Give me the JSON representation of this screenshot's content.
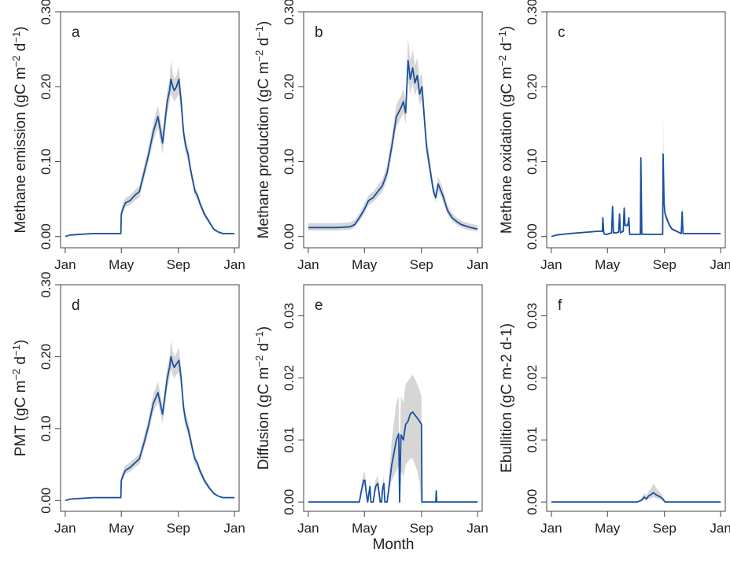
{
  "x_label": "Month",
  "chart_data": [
    {
      "panel": "a",
      "type": "line",
      "ylabel": "Methane emission (gC m",
      "ylabel_sup1": "−2",
      "ylabel_mid": " d",
      "ylabel_sup2": "−1",
      "ylabel_end": ")",
      "ylim": [
        -0.015,
        0.3
      ],
      "yticks": [
        0.0,
        0.1,
        0.2,
        0.3
      ],
      "yticklabels": [
        "0.00",
        "0.10",
        "0.20",
        "0.30"
      ],
      "xlim": [
        -10,
        375
      ],
      "xticks": [
        0,
        121,
        244,
        365
      ],
      "xticklabels": [
        "Jan",
        "May",
        "Sep",
        "Jan"
      ],
      "x": [
        0,
        10,
        60,
        110,
        120,
        121,
        125,
        130,
        140,
        150,
        160,
        170,
        180,
        190,
        200,
        210,
        220,
        225,
        228,
        232,
        235,
        240,
        245,
        250,
        255,
        260,
        265,
        270,
        275,
        280,
        285,
        290,
        300,
        310,
        320,
        330,
        340,
        350,
        360,
        365
      ],
      "y": [
        0.0,
        0.002,
        0.004,
        0.004,
        0.004,
        0.03,
        0.038,
        0.045,
        0.048,
        0.055,
        0.06,
        0.085,
        0.11,
        0.14,
        0.16,
        0.125,
        0.18,
        0.195,
        0.21,
        0.2,
        0.195,
        0.2,
        0.21,
        0.18,
        0.14,
        0.12,
        0.11,
        0.09,
        0.075,
        0.06,
        0.055,
        0.045,
        0.03,
        0.02,
        0.01,
        0.006,
        0.004,
        0.004,
        0.004,
        0.004
      ],
      "lower": [
        0.0,
        0.001,
        0.003,
        0.003,
        0.003,
        0.025,
        0.032,
        0.04,
        0.042,
        0.048,
        0.052,
        0.076,
        0.1,
        0.128,
        0.145,
        0.11,
        0.165,
        0.18,
        0.19,
        0.185,
        0.18,
        0.185,
        0.19,
        0.165,
        0.13,
        0.11,
        0.1,
        0.082,
        0.068,
        0.054,
        0.049,
        0.04,
        0.026,
        0.017,
        0.008,
        0.005,
        0.003,
        0.003,
        0.003,
        0.003
      ],
      "upper": [
        0.0,
        0.003,
        0.005,
        0.005,
        0.005,
        0.036,
        0.045,
        0.052,
        0.055,
        0.062,
        0.068,
        0.094,
        0.12,
        0.152,
        0.175,
        0.14,
        0.195,
        0.21,
        0.235,
        0.218,
        0.21,
        0.215,
        0.228,
        0.195,
        0.152,
        0.13,
        0.12,
        0.098,
        0.082,
        0.066,
        0.061,
        0.05,
        0.034,
        0.023,
        0.012,
        0.007,
        0.005,
        0.005,
        0.005,
        0.005
      ]
    },
    {
      "panel": "b",
      "type": "line",
      "ylabel": "Methane production (gC m",
      "ylabel_sup1": "−2",
      "ylabel_mid": " d",
      "ylabel_sup2": "−1",
      "ylabel_end": ")",
      "ylim": [
        -0.015,
        0.3
      ],
      "yticks": [
        0.0,
        0.1,
        0.2,
        0.3
      ],
      "yticklabels": [
        "0.00",
        "0.10",
        "0.20",
        "0.30"
      ],
      "xlim": [
        -10,
        375
      ],
      "xticks": [
        0,
        121,
        244,
        365
      ],
      "xticklabels": [
        "Jan",
        "May",
        "Sep",
        "Jan"
      ],
      "x": [
        0,
        30,
        60,
        90,
        100,
        110,
        120,
        130,
        140,
        150,
        160,
        170,
        180,
        190,
        200,
        205,
        210,
        215,
        220,
        225,
        230,
        235,
        240,
        245,
        250,
        255,
        260,
        265,
        270,
        275,
        280,
        290,
        300,
        310,
        320,
        330,
        340,
        350,
        365
      ],
      "y": [
        0.012,
        0.012,
        0.012,
        0.013,
        0.016,
        0.025,
        0.035,
        0.048,
        0.052,
        0.06,
        0.068,
        0.085,
        0.12,
        0.16,
        0.172,
        0.18,
        0.165,
        0.235,
        0.21,
        0.225,
        0.205,
        0.215,
        0.19,
        0.2,
        0.16,
        0.12,
        0.1,
        0.08,
        0.06,
        0.052,
        0.07,
        0.055,
        0.035,
        0.025,
        0.02,
        0.016,
        0.014,
        0.012,
        0.01
      ],
      "lower": [
        0.008,
        0.008,
        0.008,
        0.009,
        0.012,
        0.02,
        0.03,
        0.042,
        0.046,
        0.053,
        0.06,
        0.076,
        0.108,
        0.146,
        0.158,
        0.165,
        0.15,
        0.21,
        0.19,
        0.205,
        0.188,
        0.198,
        0.175,
        0.184,
        0.146,
        0.108,
        0.09,
        0.072,
        0.054,
        0.046,
        0.062,
        0.048,
        0.03,
        0.021,
        0.016,
        0.012,
        0.01,
        0.008,
        0.007
      ],
      "upper": [
        0.018,
        0.018,
        0.018,
        0.019,
        0.022,
        0.031,
        0.042,
        0.055,
        0.06,
        0.068,
        0.077,
        0.095,
        0.133,
        0.176,
        0.188,
        0.197,
        0.182,
        0.265,
        0.235,
        0.25,
        0.228,
        0.238,
        0.21,
        0.22,
        0.176,
        0.134,
        0.112,
        0.09,
        0.068,
        0.06,
        0.08,
        0.064,
        0.042,
        0.031,
        0.025,
        0.021,
        0.019,
        0.017,
        0.015
      ]
    },
    {
      "panel": "c",
      "type": "line",
      "ylabel": "Methane oxidation (gC m",
      "ylabel_sup1": "−2",
      "ylabel_mid": " d",
      "ylabel_sup2": "−1",
      "ylabel_end": ")",
      "ylim": [
        -0.015,
        0.3
      ],
      "yticks": [
        0.0,
        0.1,
        0.2,
        0.3
      ],
      "yticklabels": [
        "0.00",
        "0.10",
        "0.20",
        "0.30"
      ],
      "xlim": [
        -10,
        375
      ],
      "xticks": [
        0,
        121,
        244,
        365
      ],
      "xticklabels": [
        "Jan",
        "May",
        "Sep",
        "Jan"
      ],
      "x": [
        0,
        10,
        40,
        80,
        100,
        110,
        111,
        113,
        115,
        120,
        130,
        132,
        134,
        140,
        145,
        147,
        149,
        155,
        157,
        159,
        165,
        167,
        169,
        180,
        192,
        193,
        195,
        197,
        215,
        240,
        241,
        243,
        245,
        250,
        255,
        260,
        270,
        280,
        282,
        284,
        290,
        300,
        320,
        340,
        365
      ],
      "y": [
        0.0,
        0.002,
        0.004,
        0.006,
        0.007,
        0.007,
        0.025,
        0.005,
        0.003,
        0.003,
        0.005,
        0.04,
        0.005,
        0.005,
        0.006,
        0.03,
        0.005,
        0.007,
        0.038,
        0.015,
        0.015,
        0.025,
        0.003,
        0.003,
        0.003,
        0.105,
        0.003,
        0.003,
        0.003,
        0.003,
        0.11,
        0.045,
        0.03,
        0.022,
        0.015,
        0.01,
        0.007,
        0.004,
        0.033,
        0.004,
        0.004,
        0.004,
        0.004,
        0.004,
        0.004
      ],
      "lower": [
        0.0,
        0.001,
        0.003,
        0.005,
        0.006,
        0.006,
        0.02,
        0.004,
        0.002,
        0.002,
        0.004,
        0.032,
        0.004,
        0.004,
        0.005,
        0.024,
        0.004,
        0.006,
        0.03,
        0.012,
        0.012,
        0.02,
        0.002,
        0.002,
        0.002,
        0.085,
        0.002,
        0.002,
        0.002,
        0.002,
        0.09,
        0.038,
        0.025,
        0.018,
        0.012,
        0.008,
        0.006,
        0.003,
        0.026,
        0.003,
        0.003,
        0.003,
        0.003,
        0.003,
        0.003
      ],
      "upper": [
        0.0,
        0.003,
        0.005,
        0.007,
        0.008,
        0.008,
        0.03,
        0.006,
        0.004,
        0.004,
        0.006,
        0.05,
        0.006,
        0.006,
        0.007,
        0.036,
        0.006,
        0.008,
        0.046,
        0.018,
        0.018,
        0.03,
        0.004,
        0.004,
        0.004,
        0.115,
        0.004,
        0.004,
        0.004,
        0.004,
        0.16,
        0.055,
        0.036,
        0.027,
        0.018,
        0.012,
        0.008,
        0.005,
        0.04,
        0.005,
        0.005,
        0.005,
        0.005,
        0.005,
        0.005
      ]
    },
    {
      "panel": "d",
      "type": "line",
      "ylabel": "PMT (gC m",
      "ylabel_sup1": "−2",
      "ylabel_mid": " d",
      "ylabel_sup2": "−1",
      "ylabel_end": ")",
      "ylim": [
        -0.015,
        0.3
      ],
      "yticks": [
        0.0,
        0.1,
        0.2,
        0.3
      ],
      "yticklabels": [
        "0.00",
        "0.10",
        "0.20",
        "0.30"
      ],
      "xlim": [
        -10,
        375
      ],
      "xticks": [
        0,
        121,
        244,
        365
      ],
      "xticklabels": [
        "Jan",
        "May",
        "Sep",
        "Jan"
      ],
      "x": [
        0,
        10,
        60,
        110,
        120,
        121,
        125,
        130,
        140,
        150,
        160,
        170,
        180,
        190,
        200,
        210,
        220,
        225,
        228,
        232,
        235,
        240,
        245,
        250,
        255,
        260,
        265,
        270,
        275,
        280,
        285,
        290,
        300,
        310,
        320,
        330,
        340,
        350,
        360,
        365
      ],
      "y": [
        0.0,
        0.002,
        0.004,
        0.004,
        0.004,
        0.028,
        0.035,
        0.042,
        0.046,
        0.052,
        0.058,
        0.08,
        0.105,
        0.135,
        0.15,
        0.12,
        0.17,
        0.185,
        0.2,
        0.19,
        0.185,
        0.19,
        0.195,
        0.17,
        0.13,
        0.11,
        0.1,
        0.085,
        0.07,
        0.057,
        0.052,
        0.042,
        0.028,
        0.018,
        0.01,
        0.006,
        0.004,
        0.004,
        0.004,
        0.004
      ],
      "lower": [
        0.0,
        0.001,
        0.003,
        0.003,
        0.003,
        0.023,
        0.03,
        0.037,
        0.04,
        0.046,
        0.051,
        0.072,
        0.095,
        0.123,
        0.137,
        0.107,
        0.156,
        0.17,
        0.182,
        0.174,
        0.17,
        0.175,
        0.178,
        0.156,
        0.12,
        0.1,
        0.091,
        0.077,
        0.063,
        0.051,
        0.046,
        0.037,
        0.024,
        0.015,
        0.008,
        0.005,
        0.003,
        0.003,
        0.003,
        0.003
      ],
      "upper": [
        0.0,
        0.003,
        0.005,
        0.005,
        0.005,
        0.034,
        0.042,
        0.049,
        0.053,
        0.059,
        0.065,
        0.089,
        0.115,
        0.148,
        0.165,
        0.133,
        0.185,
        0.2,
        0.222,
        0.208,
        0.2,
        0.205,
        0.213,
        0.184,
        0.142,
        0.12,
        0.11,
        0.093,
        0.077,
        0.063,
        0.058,
        0.047,
        0.032,
        0.021,
        0.012,
        0.007,
        0.005,
        0.005,
        0.005,
        0.005
      ]
    },
    {
      "panel": "e",
      "type": "line",
      "ylabel": "Diffusion (gC m",
      "ylabel_sup1": "−2",
      "ylabel_mid": " d",
      "ylabel_sup2": "−1",
      "ylabel_end": ")",
      "ylim": [
        -0.0015,
        0.035
      ],
      "yticks": [
        0.0,
        0.01,
        0.02,
        0.03
      ],
      "yticklabels": [
        "0.00",
        "0.01",
        "0.02",
        "0.03"
      ],
      "xlim": [
        -10,
        375
      ],
      "xticks": [
        0,
        121,
        244,
        365
      ],
      "xticklabels": [
        "Jan",
        "May",
        "Sep",
        "Jan"
      ],
      "x": [
        0,
        100,
        110,
        115,
        118,
        120,
        122,
        125,
        128,
        130,
        133,
        135,
        140,
        145,
        150,
        155,
        158,
        160,
        163,
        165,
        170,
        180,
        190,
        195,
        197,
        199,
        200,
        205,
        210,
        215,
        220,
        225,
        230,
        235,
        240,
        244,
        245,
        250,
        255,
        270,
        275,
        276,
        277,
        300,
        365
      ],
      "y": [
        0.0,
        0.0,
        0.0,
        0.002,
        0.003,
        0.0035,
        0.0035,
        0.0015,
        0.0,
        0.001,
        0.0025,
        0.0,
        0.0,
        0.0025,
        0.003,
        0.0,
        0.0,
        0.002,
        0.003,
        0.0,
        0.0,
        0.006,
        0.01,
        0.011,
        0.0,
        0.008,
        0.0108,
        0.01,
        0.0125,
        0.013,
        0.0142,
        0.0145,
        0.014,
        0.0135,
        0.013,
        0.0125,
        0.0,
        0.0,
        0.0,
        0.0,
        0.0,
        0.0018,
        0.0,
        0.0,
        0.0
      ],
      "lower": [
        0.0,
        0.0,
        0.0,
        0.0015,
        0.0022,
        0.0026,
        0.0026,
        0.001,
        0.0,
        0.0007,
        0.0018,
        0.0,
        0.0,
        0.0018,
        0.0022,
        0.0,
        0.0,
        0.0015,
        0.0022,
        0.0,
        0.0,
        0.0035,
        0.005,
        0.0058,
        0.0,
        0.0035,
        0.005,
        0.004,
        0.006,
        0.0065,
        0.007,
        0.007,
        0.006,
        0.005,
        0.003,
        -0.001,
        0.0,
        0.0,
        0.0,
        0.0,
        0.0,
        0.0013,
        0.0,
        0.0,
        0.0
      ],
      "upper": [
        0.0,
        0.0,
        0.0,
        0.003,
        0.0042,
        0.0048,
        0.0048,
        0.0022,
        0.0,
        0.0015,
        0.0035,
        0.0,
        0.0,
        0.0035,
        0.0042,
        0.0,
        0.0,
        0.0028,
        0.0042,
        0.0,
        0.0,
        0.01,
        0.016,
        0.017,
        0.0,
        0.014,
        0.017,
        0.016,
        0.019,
        0.0195,
        0.02,
        0.0205,
        0.0198,
        0.019,
        0.018,
        0.017,
        0.0,
        0.0,
        0.0,
        0.0,
        0.0,
        0.0025,
        0.0,
        0.0,
        0.0
      ]
    },
    {
      "panel": "f",
      "type": "line",
      "ylabel": "Ebullition (gC m-2 d-1)",
      "ylabel_sup1": "",
      "ylabel_mid": "",
      "ylabel_sup2": "",
      "ylabel_end": "",
      "ylim": [
        -0.0015,
        0.035
      ],
      "yticks": [
        0.0,
        0.01,
        0.02,
        0.03
      ],
      "yticklabels": [
        "0.00",
        "0.01",
        "0.02",
        "0.03"
      ],
      "xlim": [
        -10,
        375
      ],
      "xticks": [
        0,
        121,
        244,
        365
      ],
      "xticklabels": [
        "Jan",
        "May",
        "Sep",
        "Jan"
      ],
      "x": [
        0,
        170,
        185,
        195,
        200,
        205,
        210,
        215,
        220,
        225,
        230,
        235,
        240,
        245,
        250,
        365
      ],
      "y": [
        0.0,
        0.0,
        0.0,
        0.0003,
        0.0008,
        0.0005,
        0.001,
        0.0012,
        0.0015,
        0.0012,
        0.001,
        0.0008,
        0.0005,
        0.0,
        0.0,
        0.0
      ],
      "lower": [
        0.0,
        0.0,
        0.0,
        0.0001,
        0.0004,
        0.0002,
        0.0005,
        0.0006,
        0.0008,
        0.0006,
        0.0005,
        0.0004,
        0.0002,
        0.0,
        0.0,
        0.0
      ],
      "upper": [
        0.0,
        0.0,
        0.0,
        0.0006,
        0.0014,
        0.001,
        0.0018,
        0.0022,
        0.003,
        0.0024,
        0.0019,
        0.0015,
        0.001,
        0.0,
        0.0,
        0.0
      ]
    }
  ]
}
